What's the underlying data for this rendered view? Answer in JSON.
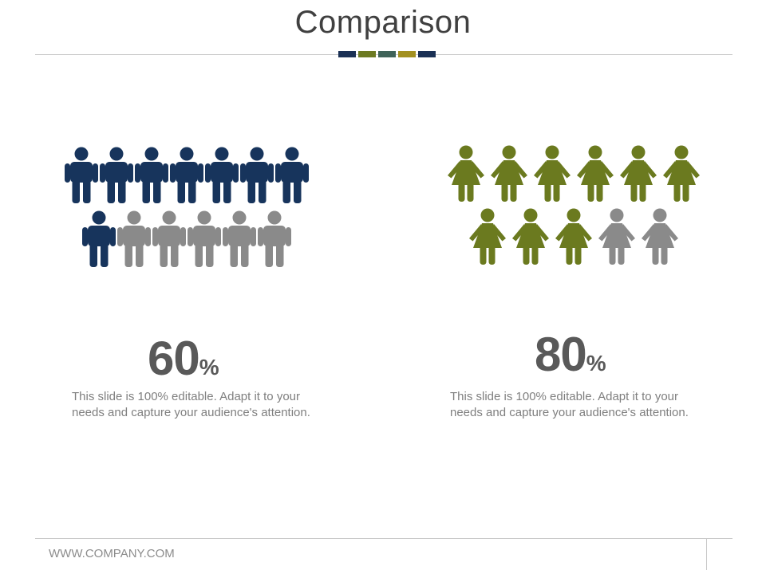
{
  "title": "Comparison",
  "accent_colors": [
    "#1b3155",
    "#6c7a22",
    "#3f6359",
    "#a39120",
    "#1b3155"
  ],
  "left": {
    "icon": "male-person-icon",
    "value": "60",
    "unit": "%",
    "icons_filled": 8,
    "icons_total": 13,
    "filled_color": "#17345c",
    "empty_color": "#8a8a8a",
    "description": "This slide is 100% editable. Adapt it to your needs and capture your audience's attention."
  },
  "right": {
    "icon": "female-person-icon",
    "value": "80",
    "unit": "%",
    "icons_filled": 9,
    "icons_total": 11,
    "filled_color": "#6b7a1f",
    "empty_color": "#8a8a8a",
    "description": "This slide is 100% editable. Adapt it to your needs and capture your audience's attention."
  },
  "footer": {
    "website": "WWW.COMPANY.COM"
  }
}
